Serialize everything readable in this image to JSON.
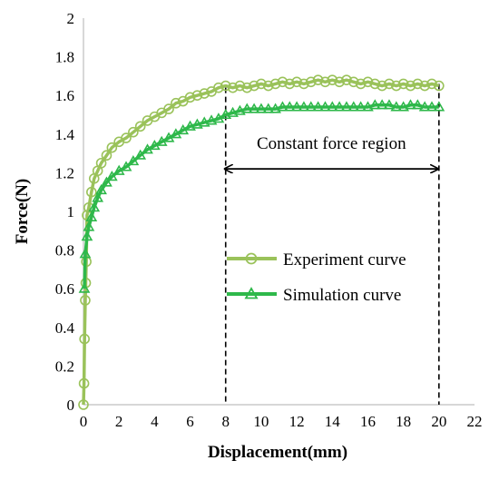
{
  "chart_data": {
    "type": "line",
    "title": "",
    "xlabel": "Displacement(mm)",
    "ylabel": "Force(N)",
    "xlim": [
      0,
      22
    ],
    "ylim": [
      0,
      2
    ],
    "xticks": [
      0,
      2,
      4,
      6,
      8,
      10,
      12,
      14,
      16,
      18,
      20,
      22
    ],
    "yticks": [
      0,
      0.2,
      0.4,
      0.6,
      0.8,
      1,
      1.2,
      1.4,
      1.6,
      1.8,
      2
    ],
    "ytick_labels": [
      "0",
      "0.2",
      "0.4",
      "0.6",
      "0.8",
      "1",
      "1.2",
      "1.4",
      "1.6",
      "1.8",
      "2"
    ],
    "grid": false,
    "legend_position": "center-right",
    "series": [
      {
        "name": "Experiment curve",
        "color": "#9ac25a",
        "marker": "circle",
        "x": [
          0,
          0.03,
          0.06,
          0.1,
          0.13,
          0.16,
          0.2,
          0.3,
          0.45,
          0.6,
          0.8,
          1.0,
          1.3,
          1.6,
          2.0,
          2.4,
          2.8,
          3.2,
          3.6,
          4.0,
          4.4,
          4.8,
          5.2,
          5.6,
          6.0,
          6.4,
          6.8,
          7.2,
          7.6,
          8.0,
          8.4,
          8.8,
          9.2,
          9.6,
          10.0,
          10.4,
          10.8,
          11.2,
          11.6,
          12.0,
          12.4,
          12.8,
          13.2,
          13.6,
          14.0,
          14.4,
          14.8,
          15.2,
          15.6,
          16.0,
          16.4,
          16.8,
          17.2,
          17.6,
          18.0,
          18.4,
          18.8,
          19.2,
          19.6,
          20.0
        ],
        "y": [
          0,
          0.11,
          0.34,
          0.54,
          0.63,
          0.74,
          0.98,
          1.02,
          1.1,
          1.17,
          1.21,
          1.25,
          1.29,
          1.33,
          1.36,
          1.38,
          1.41,
          1.44,
          1.47,
          1.49,
          1.51,
          1.53,
          1.56,
          1.57,
          1.59,
          1.6,
          1.61,
          1.62,
          1.64,
          1.65,
          1.64,
          1.65,
          1.64,
          1.65,
          1.66,
          1.65,
          1.66,
          1.67,
          1.66,
          1.67,
          1.66,
          1.67,
          1.68,
          1.67,
          1.68,
          1.67,
          1.68,
          1.67,
          1.66,
          1.67,
          1.66,
          1.65,
          1.66,
          1.65,
          1.66,
          1.65,
          1.66,
          1.65,
          1.66,
          1.65
        ]
      },
      {
        "name": "Simulation curve",
        "color": "#2eb84a",
        "marker": "triangle",
        "x": [
          0.05,
          0.1,
          0.2,
          0.3,
          0.45,
          0.6,
          0.8,
          1.0,
          1.3,
          1.6,
          2.0,
          2.4,
          2.8,
          3.2,
          3.6,
          4.0,
          4.4,
          4.8,
          5.2,
          5.6,
          6.0,
          6.4,
          6.8,
          7.2,
          7.6,
          8.0,
          8.4,
          8.8,
          9.2,
          9.6,
          10.0,
          10.4,
          10.8,
          11.2,
          11.6,
          12.0,
          12.4,
          12.8,
          13.2,
          13.6,
          14.0,
          14.4,
          14.8,
          15.2,
          15.6,
          16.0,
          16.4,
          16.8,
          17.2,
          17.6,
          18.0,
          18.4,
          18.8,
          19.2,
          19.6,
          20.0
        ],
        "y": [
          0.6,
          0.78,
          0.87,
          0.92,
          0.97,
          1.02,
          1.07,
          1.11,
          1.15,
          1.18,
          1.21,
          1.23,
          1.26,
          1.29,
          1.32,
          1.34,
          1.36,
          1.38,
          1.4,
          1.42,
          1.44,
          1.45,
          1.46,
          1.47,
          1.48,
          1.5,
          1.51,
          1.52,
          1.53,
          1.53,
          1.53,
          1.53,
          1.53,
          1.54,
          1.54,
          1.54,
          1.54,
          1.54,
          1.54,
          1.54,
          1.54,
          1.54,
          1.54,
          1.54,
          1.54,
          1.54,
          1.55,
          1.55,
          1.55,
          1.54,
          1.54,
          1.55,
          1.55,
          1.54,
          1.54,
          1.54
        ]
      }
    ],
    "annotations": [
      {
        "text": "Constant force region",
        "type": "double-arrow",
        "x_start": 7.9,
        "x_end": 20,
        "y": 1.22,
        "dashed_vertical_lines": [
          8,
          20
        ]
      }
    ]
  }
}
